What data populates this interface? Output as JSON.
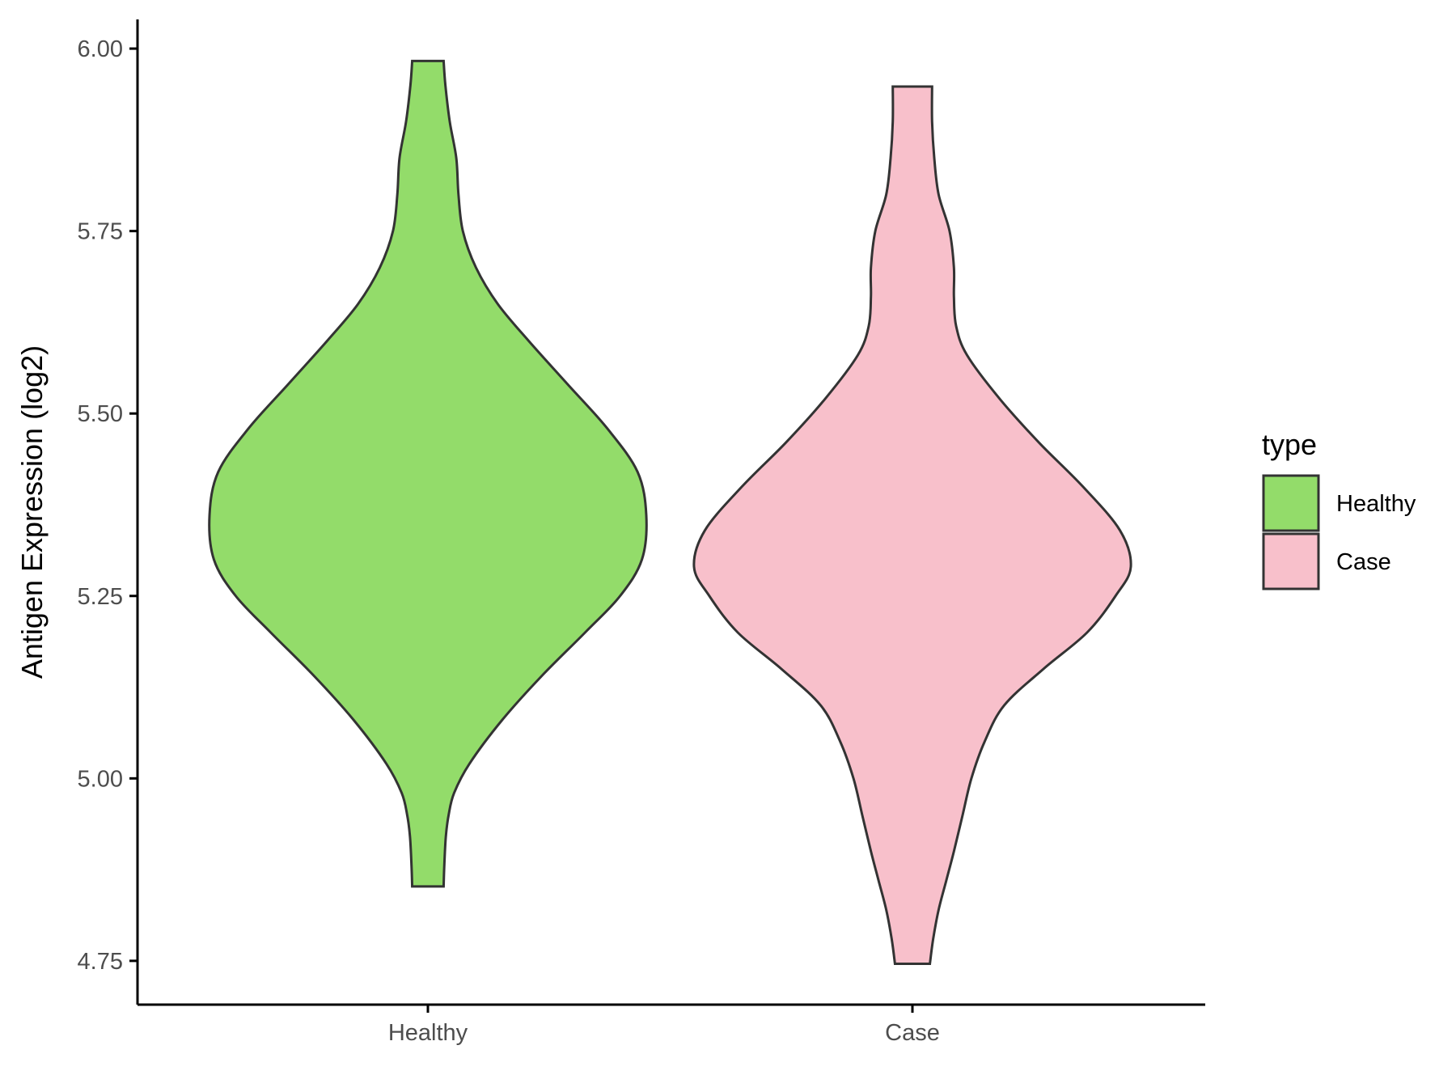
{
  "chart_data": {
    "type": "violin",
    "ylabel": "Antigen Expression (log2)",
    "xlabel": "",
    "categories": [
      "Healthy",
      "Case"
    ],
    "ylim": [
      4.69,
      6.04
    ],
    "yticks": [
      4.75,
      5.0,
      5.25,
      5.5,
      5.75,
      6.0
    ],
    "ytick_labels": [
      "4.75",
      "5.00",
      "5.25",
      "5.50",
      "5.75",
      "6.00"
    ],
    "grid": false,
    "legend": {
      "title": "type",
      "placement": "right",
      "entries": [
        {
          "label": "Healthy",
          "color": "#93dc6a"
        },
        {
          "label": "Case",
          "color": "#f8c0cb"
        }
      ]
    },
    "series": [
      {
        "category": "Healthy",
        "color": "#93dc6a",
        "range": [
          4.852,
          5.983
        ],
        "density": [
          [
            4.852,
            0.072
          ],
          [
            4.88,
            0.075
          ],
          [
            4.92,
            0.082
          ],
          [
            4.95,
            0.095
          ],
          [
            4.98,
            0.12
          ],
          [
            5.02,
            0.19
          ],
          [
            5.08,
            0.34
          ],
          [
            5.14,
            0.52
          ],
          [
            5.2,
            0.72
          ],
          [
            5.25,
            0.88
          ],
          [
            5.3,
            0.98
          ],
          [
            5.36,
            1.0
          ],
          [
            5.42,
            0.96
          ],
          [
            5.48,
            0.82
          ],
          [
            5.54,
            0.64
          ],
          [
            5.6,
            0.46
          ],
          [
            5.65,
            0.32
          ],
          [
            5.7,
            0.22
          ],
          [
            5.75,
            0.16
          ],
          [
            5.8,
            0.14
          ],
          [
            5.85,
            0.13
          ],
          [
            5.9,
            0.1
          ],
          [
            5.95,
            0.08
          ],
          [
            5.983,
            0.072
          ]
        ]
      },
      {
        "category": "Case",
        "color": "#f8c0cb",
        "range": [
          4.746,
          5.948
        ],
        "density": [
          [
            4.746,
            0.08
          ],
          [
            4.78,
            0.095
          ],
          [
            4.82,
            0.12
          ],
          [
            4.86,
            0.155
          ],
          [
            4.9,
            0.19
          ],
          [
            4.95,
            0.23
          ],
          [
            5.0,
            0.27
          ],
          [
            5.05,
            0.33
          ],
          [
            5.1,
            0.42
          ],
          [
            5.15,
            0.6
          ],
          [
            5.2,
            0.8
          ],
          [
            5.25,
            0.93
          ],
          [
            5.29,
            1.0
          ],
          [
            5.34,
            0.95
          ],
          [
            5.4,
            0.78
          ],
          [
            5.46,
            0.58
          ],
          [
            5.52,
            0.4
          ],
          [
            5.58,
            0.25
          ],
          [
            5.62,
            0.2
          ],
          [
            5.66,
            0.19
          ],
          [
            5.7,
            0.19
          ],
          [
            5.75,
            0.17
          ],
          [
            5.8,
            0.12
          ],
          [
            5.85,
            0.1
          ],
          [
            5.9,
            0.09
          ],
          [
            5.948,
            0.09
          ]
        ]
      }
    ]
  }
}
